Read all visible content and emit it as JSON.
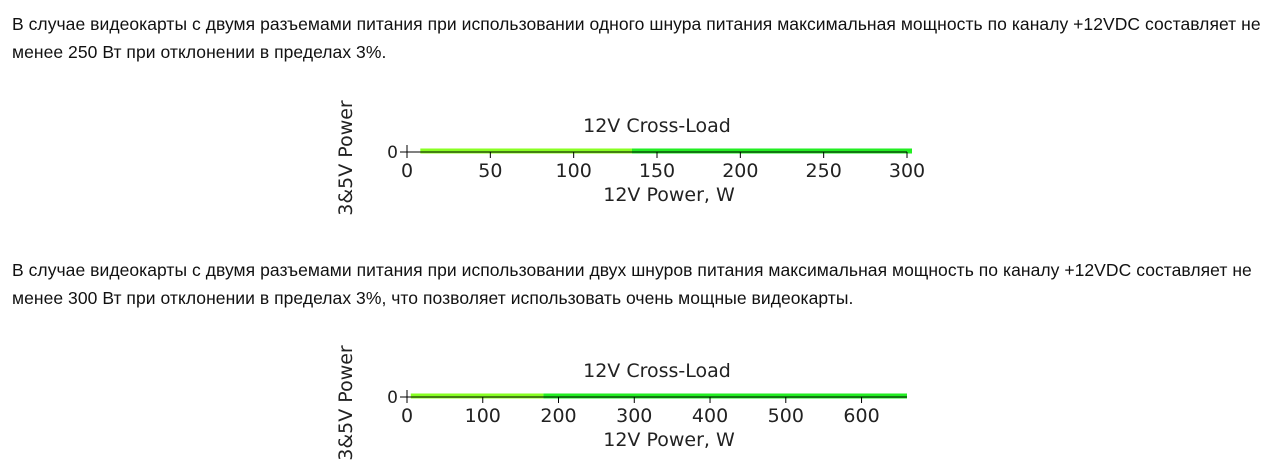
{
  "paragraphs": [
    "В случае видеокарты с двумя разъемами питания при использовании одного шнура питания максимальная мощность по каналу +12VDC составляет не менее 250 Вт при отклонении в пределах 3%.",
    "В случае видеокарты с двумя разъемами питания при использовании двух шнуров питания максимальная мощность по каналу +12VDC составляет не менее 300 Вт при отклонении в пределах 3%, что позволяет использовать очень мощные видеокарты."
  ],
  "chart_data": [
    {
      "type": "line",
      "title": "12V Cross-Load",
      "xlabel": "12V Power, W",
      "ylabel": "3&5V Power",
      "xlim": [
        0,
        300
      ],
      "xticks": [
        0,
        50,
        100,
        150,
        200,
        250,
        300
      ],
      "yticks": [
        0
      ],
      "grid": false,
      "series": [
        {
          "x": [
            8,
            135
          ],
          "y": [
            0,
            0
          ],
          "color": "#88ff22"
        },
        {
          "x": [
            135,
            303
          ],
          "y": [
            0,
            0
          ],
          "color": "#22ee22"
        }
      ]
    },
    {
      "type": "line",
      "title": "12V Cross-Load",
      "xlabel": "12V Power, W",
      "ylabel": "3&5V Power",
      "xlim": [
        0,
        660
      ],
      "xticks": [
        0,
        100,
        200,
        300,
        400,
        500,
        600
      ],
      "yticks": [
        0
      ],
      "grid": false,
      "series": [
        {
          "x": [
            5,
            180
          ],
          "y": [
            0,
            0
          ],
          "color": "#88ff22"
        },
        {
          "x": [
            180,
            660
          ],
          "y": [
            0,
            0
          ],
          "color": "#22ee22"
        }
      ]
    }
  ]
}
